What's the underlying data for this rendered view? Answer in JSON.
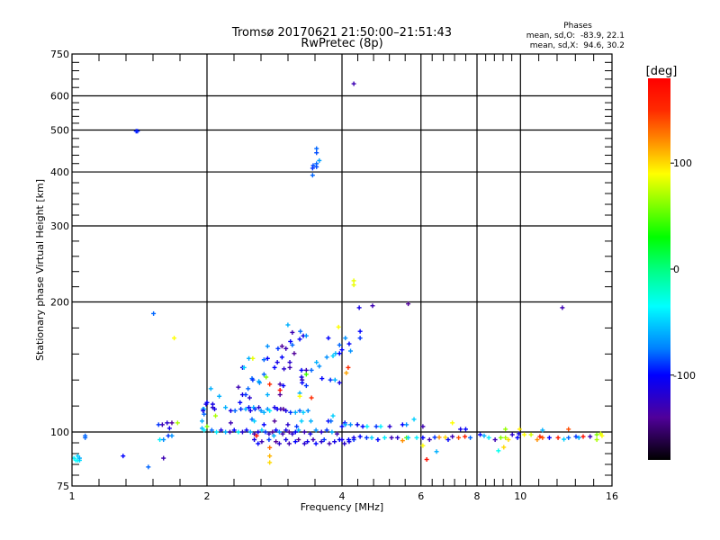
{
  "header": {
    "title_line1": "Tromsø 20170621 21:50:00–21:51:43",
    "title_line2": "RwPretec (8p)",
    "stats_title": "Phases",
    "stats_o": "mean, sd,O:  -83.9, 22.1",
    "stats_x": "mean, sd,X:  94.6, 30.2"
  },
  "colorbar": {
    "label": "[deg]",
    "range": [
      -180,
      180
    ],
    "ticks": [
      {
        "value": 100,
        "label": "100"
      },
      {
        "value": 0,
        "label": "0"
      },
      {
        "value": -100,
        "label": "-100"
      }
    ],
    "stops": [
      {
        "value": 180,
        "color": "#ff0000"
      },
      {
        "value": 150,
        "color": "#ff2a00"
      },
      {
        "value": 120,
        "color": "#ff9000"
      },
      {
        "value": 90,
        "color": "#ffff00"
      },
      {
        "value": 30,
        "color": "#00ff00"
      },
      {
        "value": 0,
        "color": "#00ff80"
      },
      {
        "value": -35,
        "color": "#00ffff"
      },
      {
        "value": -75,
        "color": "#0080ff"
      },
      {
        "value": -100,
        "color": "#0000ff"
      },
      {
        "value": -140,
        "color": "#50009a"
      },
      {
        "value": -180,
        "color": "#000000"
      }
    ]
  },
  "chart_data": {
    "type": "scatter",
    "title": "Tromsø 20170621 21:50:00–21:51:43 RwPretec (8p)",
    "xlabel": "Frequency [MHz]",
    "ylabel": "Stationary phase Virtual Height [km]",
    "xscale": "log",
    "yscale": "log",
    "xlim": [
      1,
      16
    ],
    "ylim": [
      75,
      750
    ],
    "grid": true,
    "x_ticks": [
      {
        "value": 1,
        "label": "1"
      },
      {
        "value": 2,
        "label": "2"
      },
      {
        "value": 4,
        "label": "4"
      },
      {
        "value": 6,
        "label": "6"
      },
      {
        "value": 8,
        "label": "8"
      },
      {
        "value": 10,
        "label": "10"
      },
      {
        "value": 16,
        "label": "16"
      }
    ],
    "y_ticks": [
      {
        "value": 75,
        "label": "75"
      },
      {
        "value": 100,
        "label": "100"
      },
      {
        "value": 200,
        "label": "200"
      },
      {
        "value": 300,
        "label": "300"
      },
      {
        "value": 400,
        "label": "400"
      },
      {
        "value": 500,
        "label": "500"
      },
      {
        "value": 600,
        "label": "600"
      },
      {
        "value": 750,
        "label": "750"
      }
    ],
    "point_fields": [
      "frequency_mhz",
      "height_km",
      "phase_deg"
    ],
    "points": [
      [
        1.39,
        497,
        -95
      ],
      [
        1.4,
        497,
        -95
      ],
      [
        4.25,
        640,
        -130
      ],
      [
        3.51,
        453,
        -80
      ],
      [
        3.51,
        443,
        -85
      ],
      [
        3.56,
        425,
        -65
      ],
      [
        3.51,
        418,
        -80
      ],
      [
        3.45,
        414,
        -85
      ],
      [
        3.51,
        411,
        -85
      ],
      [
        3.44,
        408,
        -90
      ],
      [
        3.44,
        393,
        -80
      ],
      [
        4.25,
        224,
        85
      ],
      [
        4.25,
        219,
        85
      ],
      [
        4.37,
        194,
        -110
      ],
      [
        4.68,
        196,
        -130
      ],
      [
        5.62,
        198,
        -140
      ],
      [
        12.4,
        194,
        -130
      ],
      [
        1.52,
        188,
        -80
      ],
      [
        1.69,
        165,
        90
      ],
      [
        2.04,
        126,
        -60
      ],
      [
        2.0,
        117,
        -100
      ],
      [
        1.99,
        116,
        -110
      ],
      [
        2.06,
        114,
        -120
      ],
      [
        1.97,
        113,
        -50
      ],
      [
        2.08,
        113,
        -110
      ],
      [
        1.97,
        110,
        -80
      ],
      [
        1.63,
        105,
        -120
      ],
      [
        1.59,
        104,
        -130
      ],
      [
        1.67,
        105,
        -140
      ],
      [
        1.72,
        105,
        70
      ],
      [
        1.56,
        104,
        -90
      ],
      [
        1.65,
        102,
        -110
      ],
      [
        1.57,
        96,
        -40
      ],
      [
        1.6,
        96,
        -70
      ],
      [
        1.64,
        98,
        -90
      ],
      [
        1.67,
        98,
        -70
      ],
      [
        1.07,
        98,
        -80
      ],
      [
        1.07,
        97,
        -80
      ],
      [
        1.01,
        87,
        -40
      ],
      [
        1.03,
        86,
        -40
      ],
      [
        1.04,
        86,
        -45
      ],
      [
        1.03,
        88,
        -50
      ],
      [
        1.02,
        86,
        -35
      ],
      [
        1.04,
        87,
        -60
      ],
      [
        1.3,
        88,
        -100
      ],
      [
        1.6,
        87,
        -130
      ],
      [
        1.48,
        83,
        -80
      ],
      [
        1.95,
        102,
        -60
      ],
      [
        1.97,
        101,
        -40
      ],
      [
        2.0,
        103,
        60
      ],
      [
        3.03,
        177,
        -60
      ],
      [
        3.23,
        171,
        -80
      ],
      [
        3.28,
        167,
        -110
      ],
      [
        3.33,
        167,
        -70
      ],
      [
        3.1,
        170,
        -130
      ],
      [
        3.22,
        164,
        -100
      ],
      [
        3.07,
        162,
        -100
      ],
      [
        3.1,
        159,
        -80
      ],
      [
        2.94,
        158,
        -140
      ],
      [
        3.0,
        156,
        -130
      ],
      [
        2.88,
        156,
        -90
      ],
      [
        2.73,
        158,
        -70
      ],
      [
        3.73,
        165,
        -100
      ],
      [
        3.93,
        175,
        90
      ],
      [
        4.39,
        171,
        -100
      ],
      [
        4.39,
        165,
        -90
      ],
      [
        4.07,
        165,
        -70
      ],
      [
        3.95,
        159,
        -80
      ],
      [
        4.0,
        155,
        -100
      ],
      [
        4.15,
        160,
        -100
      ],
      [
        4.18,
        154,
        -70
      ],
      [
        3.87,
        152,
        -60
      ],
      [
        3.95,
        152,
        -100
      ],
      [
        3.7,
        149,
        -70
      ],
      [
        3.82,
        150,
        -50
      ],
      [
        4.13,
        141,
        150
      ],
      [
        4.09,
        137,
        115
      ],
      [
        2.73,
        148,
        -100
      ],
      [
        2.68,
        147,
        -80
      ],
      [
        2.48,
        148,
        -60
      ],
      [
        2.53,
        148,
        85
      ],
      [
        2.87,
        145,
        -110
      ],
      [
        2.97,
        140,
        -120
      ],
      [
        2.83,
        141,
        -100
      ],
      [
        2.4,
        141,
        -110
      ],
      [
        2.42,
        141,
        -50
      ],
      [
        3.06,
        141,
        -130
      ],
      [
        3.13,
        152,
        -140
      ],
      [
        3.06,
        145,
        -120
      ],
      [
        2.94,
        149,
        -100
      ],
      [
        3.25,
        139,
        -100
      ],
      [
        3.25,
        134,
        -110
      ],
      [
        3.33,
        139,
        -130
      ],
      [
        3.42,
        139,
        -80
      ],
      [
        3.51,
        145,
        -60
      ],
      [
        3.56,
        142,
        -70
      ],
      [
        3.77,
        132,
        -90
      ],
      [
        3.86,
        132,
        -60
      ],
      [
        3.61,
        133,
        -100
      ],
      [
        3.95,
        130,
        -110
      ],
      [
        3.26,
        132,
        -130
      ],
      [
        3.26,
        130,
        -100
      ],
      [
        3.33,
        128,
        -90
      ],
      [
        3.33,
        136,
        45
      ],
      [
        2.76,
        129,
        150
      ],
      [
        2.91,
        129,
        -130
      ],
      [
        2.96,
        128,
        -100
      ],
      [
        2.91,
        125,
        170
      ],
      [
        2.91,
        122,
        -140
      ],
      [
        2.71,
        134,
        60
      ],
      [
        2.68,
        136,
        -80
      ],
      [
        2.52,
        133,
        -80
      ],
      [
        2.53,
        132,
        -90
      ],
      [
        2.61,
        131,
        -60
      ],
      [
        2.62,
        130,
        -70
      ],
      [
        2.35,
        127,
        -130
      ],
      [
        2.47,
        126,
        -80
      ],
      [
        2.4,
        122,
        -110
      ],
      [
        2.44,
        122,
        -90
      ],
      [
        2.49,
        120,
        -120
      ],
      [
        2.73,
        122,
        -60
      ],
      [
        3.22,
        123,
        -60
      ],
      [
        3.22,
        121,
        90
      ],
      [
        3.42,
        120,
        150
      ],
      [
        2.13,
        121,
        -60
      ],
      [
        2.06,
        116,
        -110
      ],
      [
        1.96,
        113,
        -70
      ],
      [
        1.96,
        112,
        -110
      ],
      [
        2.09,
        109,
        70
      ],
      [
        1.95,
        106,
        -60
      ],
      [
        2.2,
        114,
        -60
      ],
      [
        2.26,
        112,
        -110
      ],
      [
        2.31,
        112,
        -80
      ],
      [
        2.37,
        117,
        -100
      ],
      [
        2.38,
        113,
        -90
      ],
      [
        2.44,
        113,
        -60
      ],
      [
        2.48,
        114,
        -100
      ],
      [
        2.5,
        112,
        -110
      ],
      [
        2.54,
        114,
        -60
      ],
      [
        2.56,
        113,
        -90
      ],
      [
        2.61,
        114,
        -120
      ],
      [
        2.64,
        112,
        -70
      ],
      [
        2.68,
        111,
        -60
      ],
      [
        2.73,
        113,
        -70
      ],
      [
        2.76,
        112,
        -40
      ],
      [
        2.83,
        114,
        -110
      ],
      [
        2.87,
        113,
        -100
      ],
      [
        2.92,
        113,
        -130
      ],
      [
        2.96,
        113,
        -140
      ],
      [
        3.0,
        112,
        -110
      ],
      [
        3.07,
        111,
        -90
      ],
      [
        3.15,
        111,
        -60
      ],
      [
        3.22,
        112,
        -80
      ],
      [
        3.28,
        111,
        -50
      ],
      [
        3.36,
        112,
        -70
      ],
      [
        2.52,
        107,
        -80
      ],
      [
        2.55,
        106,
        -50
      ],
      [
        2.26,
        105,
        -130
      ],
      [
        2.68,
        104,
        -100
      ],
      [
        2.83,
        106,
        -140
      ],
      [
        3.03,
        104,
        -120
      ],
      [
        3.17,
        103,
        -90
      ],
      [
        3.25,
        106,
        -50
      ],
      [
        3.41,
        106,
        -60
      ],
      [
        3.82,
        109,
        -50
      ],
      [
        3.73,
        106,
        -100
      ],
      [
        3.78,
        106,
        -80
      ],
      [
        4.06,
        105,
        -100
      ],
      [
        4.18,
        104,
        -70
      ],
      [
        4.33,
        104,
        -60
      ],
      [
        4.45,
        103,
        -100
      ],
      [
        4.55,
        103,
        -40
      ],
      [
        2.05,
        101,
        -80
      ],
      [
        2.1,
        100,
        -40
      ],
      [
        2.15,
        101,
        -110
      ],
      [
        2.2,
        100,
        -60
      ],
      [
        2.25,
        100,
        -130
      ],
      [
        2.3,
        101,
        -100
      ],
      [
        2.35,
        100,
        -40
      ],
      [
        2.4,
        100,
        -120
      ],
      [
        2.45,
        101,
        -100
      ],
      [
        2.5,
        100,
        -60
      ],
      [
        2.55,
        99,
        -130
      ],
      [
        2.6,
        100,
        -110
      ],
      [
        2.65,
        101,
        -50
      ],
      [
        2.7,
        100,
        -90
      ],
      [
        2.75,
        99,
        -120
      ],
      [
        2.8,
        100,
        -140
      ],
      [
        2.85,
        101,
        -100
      ],
      [
        2.9,
        100,
        -70
      ],
      [
        2.95,
        99,
        -130
      ],
      [
        3.0,
        101,
        -110
      ],
      [
        3.05,
        100,
        -140
      ],
      [
        3.1,
        99,
        -120
      ],
      [
        3.15,
        100,
        -100
      ],
      [
        3.2,
        101,
        -60
      ],
      [
        3.3,
        100,
        -130
      ],
      [
        3.4,
        99,
        -110
      ],
      [
        3.5,
        101,
        -70
      ],
      [
        3.6,
        100,
        -120
      ],
      [
        3.7,
        101,
        -90
      ],
      [
        3.8,
        100,
        -60
      ],
      [
        3.9,
        99,
        -130
      ],
      [
        2.58,
        98,
        170
      ],
      [
        2.55,
        96,
        -110
      ],
      [
        2.6,
        94,
        -100
      ],
      [
        2.65,
        95,
        -130
      ],
      [
        2.75,
        96,
        -90
      ],
      [
        2.85,
        95,
        -140
      ],
      [
        2.9,
        94,
        -120
      ],
      [
        3.0,
        96,
        -110
      ],
      [
        3.05,
        94,
        -130
      ],
      [
        3.15,
        95,
        -100
      ],
      [
        3.2,
        96,
        -140
      ],
      [
        3.3,
        94,
        -120
      ],
      [
        3.35,
        95,
        -110
      ],
      [
        3.45,
        96,
        -130
      ],
      [
        3.5,
        94,
        -100
      ],
      [
        3.6,
        95,
        -120
      ],
      [
        3.65,
        96,
        -90
      ],
      [
        3.75,
        94,
        -130
      ],
      [
        3.85,
        95,
        -110
      ],
      [
        3.95,
        96,
        -100
      ],
      [
        4.05,
        94,
        -120
      ],
      [
        4.15,
        95,
        -110
      ],
      [
        4.25,
        96,
        -90
      ],
      [
        2.76,
        88,
        110
      ],
      [
        2.76,
        85,
        100
      ],
      [
        2.76,
        92,
        130
      ],
      [
        2.82,
        98,
        -60
      ],
      [
        4.0,
        103,
        -100
      ],
      [
        4.07,
        104,
        -60
      ],
      [
        4.33,
        104,
        -110
      ],
      [
        4.77,
        103,
        -90
      ],
      [
        4.88,
        103,
        -40
      ],
      [
        5.11,
        103,
        -120
      ],
      [
        5.46,
        104,
        -100
      ],
      [
        5.57,
        104,
        -70
      ],
      [
        5.79,
        107,
        -50
      ],
      [
        6.06,
        103,
        -130
      ],
      [
        7.05,
        105,
        90
      ],
      [
        7.35,
        101.5,
        -110
      ],
      [
        7.55,
        101.5,
        -100
      ],
      [
        9.26,
        101.5,
        65
      ],
      [
        9.96,
        101.5,
        95
      ],
      [
        11.2,
        101,
        -60
      ],
      [
        12.8,
        101.5,
        140
      ],
      [
        4.0,
        96,
        -110
      ],
      [
        4.14,
        96,
        -100
      ],
      [
        4.25,
        97,
        -110
      ],
      [
        4.39,
        97.6,
        -100
      ],
      [
        4.54,
        97,
        -90
      ],
      [
        4.66,
        97,
        -50
      ],
      [
        4.81,
        96,
        -100
      ],
      [
        4.98,
        97,
        -40
      ],
      [
        5.16,
        97,
        -130
      ],
      [
        5.32,
        97,
        -120
      ],
      [
        5.46,
        95.5,
        120
      ],
      [
        5.57,
        97,
        50
      ],
      [
        5.62,
        97,
        -50
      ],
      [
        5.87,
        97,
        -40
      ],
      [
        6.06,
        97,
        -100
      ],
      [
        6.27,
        96,
        -130
      ],
      [
        6.44,
        97.2,
        -90
      ],
      [
        6.59,
        97.2,
        120
      ],
      [
        6.8,
        97.2,
        100
      ],
      [
        7.05,
        97.6,
        -130
      ],
      [
        7.28,
        97,
        140
      ],
      [
        7.52,
        97.6,
        160
      ],
      [
        7.73,
        97,
        -80
      ],
      [
        8.13,
        98.6,
        -100
      ],
      [
        8.5,
        97,
        -40
      ],
      [
        8.78,
        96,
        -130
      ],
      [
        9.04,
        97,
        60
      ],
      [
        9.26,
        97,
        70
      ],
      [
        9.59,
        98.6,
        -120
      ],
      [
        9.85,
        97,
        -100
      ],
      [
        9.92,
        99.1,
        -110
      ],
      [
        10.2,
        98.6,
        90
      ],
      [
        10.56,
        98.6,
        80
      ],
      [
        11.05,
        97.6,
        160
      ],
      [
        11.2,
        97,
        140
      ],
      [
        11.6,
        97,
        -100
      ],
      [
        12.13,
        97,
        160
      ],
      [
        12.5,
        96.2,
        -50
      ],
      [
        12.8,
        97,
        -80
      ],
      [
        13.3,
        97.6,
        -90
      ],
      [
        13.8,
        97.6,
        170
      ],
      [
        14.3,
        97.6,
        -130
      ],
      [
        14.8,
        98.6,
        60
      ],
      [
        15.1,
        99.1,
        80
      ],
      [
        14.8,
        96,
        70
      ],
      [
        15.2,
        98,
        90
      ],
      [
        13.5,
        97,
        -60
      ],
      [
        10.9,
        96,
        120
      ],
      [
        9.4,
        96,
        100
      ],
      [
        8.3,
        98,
        -60
      ],
      [
        6.9,
        96,
        -100
      ],
      [
        6.18,
        86.4,
        170
      ],
      [
        6.5,
        90.1,
        -60
      ],
      [
        8.93,
        90.5,
        -30
      ],
      [
        9.18,
        92.2,
        100
      ],
      [
        6.06,
        93,
        90
      ]
    ]
  }
}
